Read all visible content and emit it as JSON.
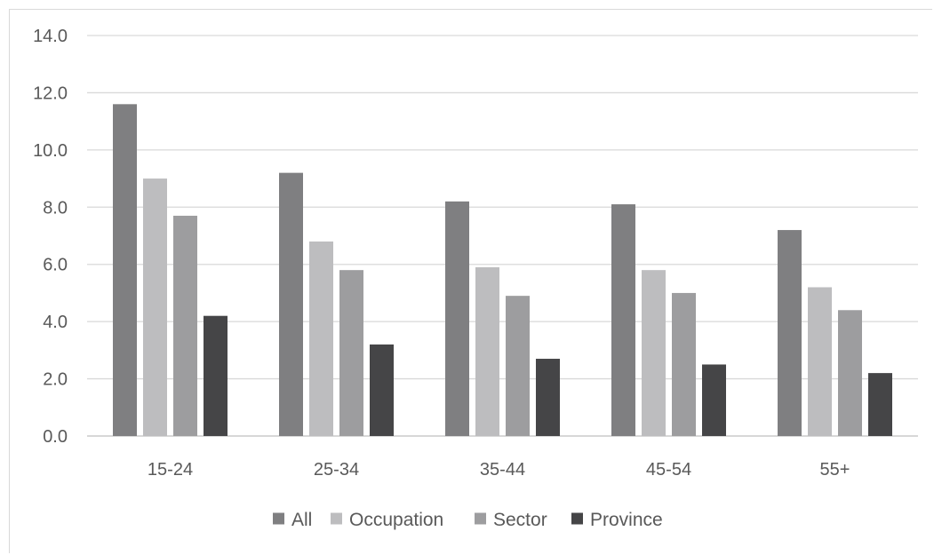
{
  "chart_data": {
    "type": "bar",
    "title": "",
    "xlabel": "",
    "ylabel": "",
    "ylim": [
      0,
      14
    ],
    "yticks": [
      "0.0",
      "2.0",
      "4.0",
      "6.0",
      "8.0",
      "10.0",
      "12.0",
      "14.0"
    ],
    "grid": true,
    "legend_position": "bottom",
    "categories": [
      "15-24",
      "25-34",
      "35-44",
      "45-54",
      "55+"
    ],
    "series": [
      {
        "name": "All",
        "color": "#7f7f81",
        "values": [
          11.6,
          9.2,
          8.2,
          8.1,
          7.2
        ]
      },
      {
        "name": "Occupation",
        "color": "#bdbdbf",
        "values": [
          9.0,
          6.8,
          5.9,
          5.8,
          5.2
        ]
      },
      {
        "name": "Sector",
        "color": "#9d9d9f",
        "values": [
          7.7,
          5.8,
          4.9,
          5.0,
          4.4
        ]
      },
      {
        "name": "Province",
        "color": "#454547",
        "values": [
          4.2,
          3.2,
          2.7,
          2.5,
          2.2
        ]
      }
    ]
  }
}
